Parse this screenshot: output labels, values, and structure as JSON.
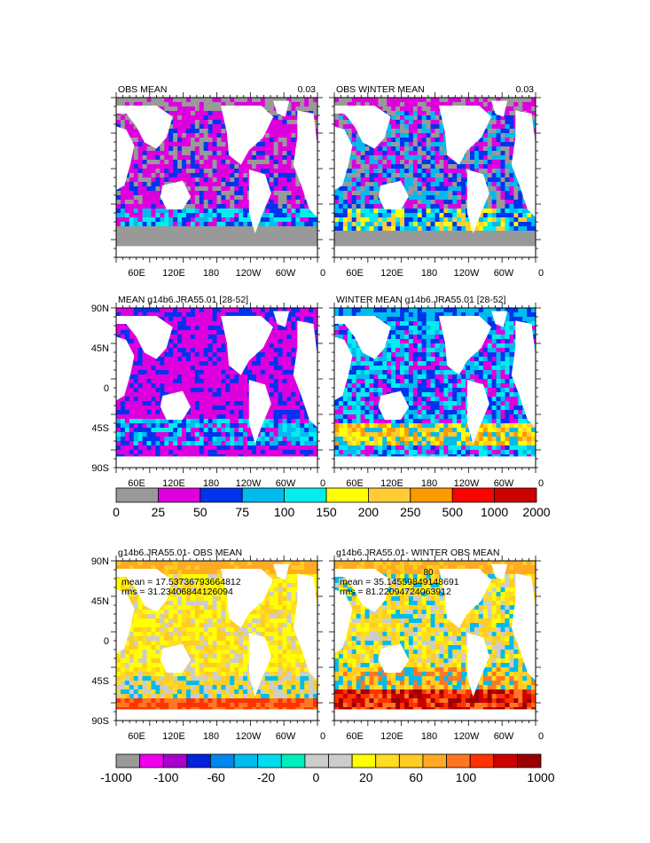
{
  "panels": [
    {
      "id": "obs-mean",
      "title": "OBS MEAN",
      "right_label": "0.03",
      "ylabels": [
        "",
        "",
        "",
        "",
        ""
      ],
      "colorbar": "a"
    },
    {
      "id": "obs-winter-mean",
      "title": "OBS WINTER MEAN",
      "right_label": "0.03",
      "ylabels": null,
      "colorbar": "a"
    },
    {
      "id": "model-mean",
      "title": "MEAN g14b6.JRA55.01 [28-52]",
      "right_label": "",
      "ylabels": [
        "90N",
        "45N",
        "0",
        "45S",
        "90S"
      ],
      "colorbar": "a"
    },
    {
      "id": "model-winter-mean",
      "title": "WINTER MEAN g14b6.JRA55.01 [28-52]",
      "right_label": "",
      "ylabels": null,
      "colorbar": "a"
    },
    {
      "id": "diff-mean",
      "title": "g14b6.JRA55.01- OBS MEAN",
      "right_label": "",
      "ylabels": [
        "90N",
        "45N",
        "0",
        "45S",
        "90S"
      ],
      "colorbar": "b",
      "stats": [
        "mean = 17.53736793664812",
        "rms = 31.23406844126094"
      ]
    },
    {
      "id": "diff-winter-mean",
      "title": "g14b6.JRA55.01- WINTER OBS MEAN",
      "right_label": "",
      "ylabels": null,
      "colorbar": "b",
      "stats": [
        "mean = 35.14559849148691",
        "rms = 81.22094724063912"
      ],
      "extra_label": "80"
    }
  ],
  "xlabels": [
    "60E",
    "120E",
    "180",
    "120W",
    "60W",
    "0"
  ],
  "colorbar_a": {
    "colors": [
      "#999999",
      "#dd00dd",
      "#0033ee",
      "#00bbee",
      "#00eeee",
      "#ffff00",
      "#ffcc33",
      "#ff9900",
      "#ff0000",
      "#cc0000"
    ],
    "labels": [
      "0",
      "25",
      "50",
      "75",
      "100",
      "150",
      "200",
      "250",
      "500",
      "1000",
      "2000"
    ]
  },
  "colorbar_b": {
    "colors": [
      "#999999",
      "#ee00ee",
      "#aa00cc",
      "#0022dd",
      "#0088ee",
      "#00bbee",
      "#00ddee",
      "#00eebb",
      "#cccccc",
      "#cccccc",
      "#ffff00",
      "#ffdd22",
      "#ffcc22",
      "#ffaa22",
      "#ff7722",
      "#ff3300",
      "#cc0000",
      "#990000"
    ],
    "labels": [
      "-1000",
      "",
      "-100",
      "",
      "-60",
      "",
      "-20",
      "",
      "0",
      "",
      "20",
      "",
      "60",
      "",
      "100",
      "",
      "",
      "1000"
    ]
  },
  "chart_data": [
    {
      "type": "heatmap",
      "title": "OBS MEAN",
      "right_label": "0.03",
      "x_ticks": [
        "60E",
        "120E",
        "180",
        "120W",
        "60W",
        "0"
      ],
      "legend_levels": [
        0,
        25,
        50,
        75,
        100,
        150,
        200,
        250,
        500,
        1000,
        2000
      ]
    },
    {
      "type": "heatmap",
      "title": "OBS WINTER MEAN",
      "right_label": "0.03",
      "x_ticks": [
        "60E",
        "120E",
        "180",
        "120W",
        "60W",
        "0"
      ],
      "legend_levels": [
        0,
        25,
        50,
        75,
        100,
        150,
        200,
        250,
        500,
        1000,
        2000
      ]
    },
    {
      "type": "heatmap",
      "title": "MEAN g14b6.JRA55.01 [28-52]",
      "y_ticks": [
        "90N",
        "45N",
        "0",
        "45S",
        "90S"
      ],
      "x_ticks": [
        "60E",
        "120E",
        "180",
        "120W",
        "60W",
        "0"
      ]
    },
    {
      "type": "heatmap",
      "title": "WINTER MEAN g14b6.JRA55.01 [28-52]",
      "x_ticks": [
        "60E",
        "120E",
        "180",
        "120W",
        "60W",
        "0"
      ]
    },
    {
      "type": "heatmap",
      "title": "g14b6.JRA55.01- OBS MEAN",
      "stats": {
        "mean": 17.53736793664812,
        "rms": 31.23406844126094
      },
      "legend_levels": [
        -1000,
        -100,
        -60,
        -20,
        0,
        20,
        60,
        100,
        1000
      ]
    },
    {
      "type": "heatmap",
      "title": "g14b6.JRA55.01- WINTER OBS MEAN",
      "stats": {
        "mean": 35.14559849148691,
        "rms": 81.22094724063912
      },
      "legend_levels": [
        -1000,
        -100,
        -60,
        -20,
        0,
        20,
        60,
        100,
        1000
      ]
    }
  ]
}
